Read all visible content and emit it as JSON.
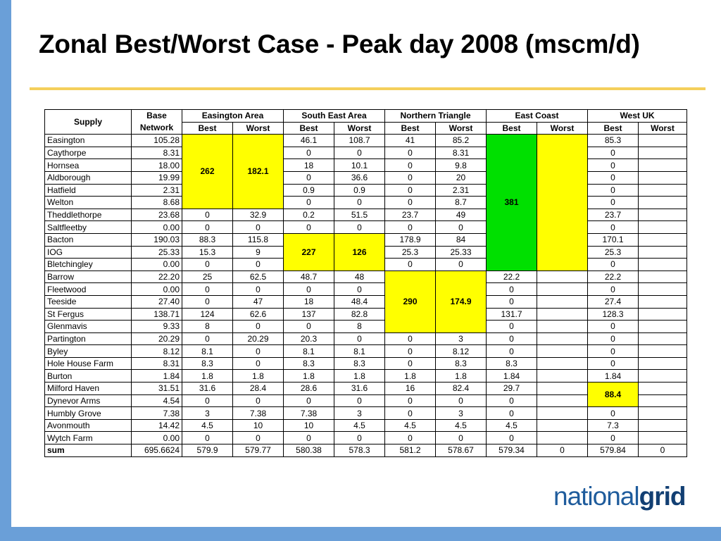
{
  "slide": {
    "title": "Zonal Best/Worst Case - Peak day 2008 (mscm/d)",
    "logo_light": "national",
    "logo_bold": "grid"
  },
  "colors": {
    "accent_bar": "#6a9fd8",
    "rule": "#f4cf5b",
    "highlight_yellow": "#ffff00",
    "highlight_green": "#00e000"
  },
  "table": {
    "headers": {
      "supply": "Supply",
      "base": "Base Network",
      "zones": [
        "Easington Area",
        "South East Area",
        "Northern Triangle",
        "East Coast",
        "West UK"
      ],
      "best": "Best",
      "worst": "Worst"
    },
    "rows": [
      {
        "name": "Easington",
        "base": "105.28",
        "v": [
          "",
          "",
          "46.1",
          "108.7",
          "41",
          "85.2",
          "",
          "",
          "85.3",
          ""
        ]
      },
      {
        "name": "Caythorpe",
        "base": "8.31",
        "v": [
          "",
          "",
          "0",
          "0",
          "0",
          "8.31",
          "",
          "",
          "0",
          ""
        ]
      },
      {
        "name": "Hornsea",
        "base": "18.00",
        "v": [
          "",
          "",
          "18",
          "10.1",
          "0",
          "9.8",
          "",
          "",
          "0",
          ""
        ]
      },
      {
        "name": "Aldborough",
        "base": "19.99",
        "v": [
          "",
          "",
          "0",
          "36.6",
          "0",
          "20",
          "",
          "",
          "0",
          ""
        ]
      },
      {
        "name": "Hatfield",
        "base": "2.31",
        "v": [
          "",
          "",
          "0.9",
          "0.9",
          "0",
          "2.31",
          "",
          "",
          "0",
          ""
        ]
      },
      {
        "name": "Welton",
        "base": "8.68",
        "v": [
          "",
          "",
          "0",
          "0",
          "0",
          "8.7",
          "",
          "",
          "0",
          ""
        ]
      },
      {
        "name": "Theddlethorpe",
        "base": "23.68",
        "v": [
          "0",
          "32.9",
          "0.2",
          "51.5",
          "23.7",
          "49",
          "",
          "",
          "23.7",
          ""
        ]
      },
      {
        "name": "Saltfleetby",
        "base": "0.00",
        "v": [
          "0",
          "0",
          "0",
          "0",
          "0",
          "0",
          "",
          "",
          "0",
          ""
        ]
      },
      {
        "name": "Bacton",
        "base": "190.03",
        "v": [
          "88.3",
          "115.8",
          "",
          "",
          "178.9",
          "84",
          "",
          "",
          "170.1",
          ""
        ]
      },
      {
        "name": "IOG",
        "base": "25.33",
        "v": [
          "15.3",
          "9",
          "",
          "",
          "25.3",
          "25.33",
          "",
          "",
          "25.3",
          ""
        ]
      },
      {
        "name": "Bletchingley",
        "base": "0.00",
        "v": [
          "0",
          "0",
          "",
          "",
          "0",
          "0",
          "",
          "",
          "0",
          ""
        ]
      },
      {
        "name": "Barrow",
        "base": "22.20",
        "v": [
          "25",
          "62.5",
          "48.7",
          "48",
          "",
          "",
          "22.2",
          "",
          "22.2",
          ""
        ]
      },
      {
        "name": "Fleetwood",
        "base": "0.00",
        "v": [
          "0",
          "0",
          "0",
          "0",
          "",
          "",
          "0",
          "",
          "0",
          ""
        ]
      },
      {
        "name": "Teeside",
        "base": "27.40",
        "v": [
          "0",
          "47",
          "18",
          "48.4",
          "",
          "",
          "0",
          "",
          "27.4",
          ""
        ]
      },
      {
        "name": "St Fergus",
        "base": "138.71",
        "v": [
          "124",
          "62.6",
          "137",
          "82.8",
          "",
          "",
          "131.7",
          "",
          "128.3",
          ""
        ]
      },
      {
        "name": "Glenmavis",
        "base": "9.33",
        "v": [
          "8",
          "0",
          "0",
          "8",
          "",
          "",
          "0",
          "",
          "0",
          ""
        ]
      },
      {
        "name": "Partington",
        "base": "20.29",
        "v": [
          "0",
          "20.29",
          "20.3",
          "0",
          "0",
          "3",
          "0",
          "",
          "0",
          ""
        ]
      },
      {
        "name": "Byley",
        "base": "8.12",
        "v": [
          "8.1",
          "0",
          "8.1",
          "8.1",
          "0",
          "8.12",
          "0",
          "",
          "0",
          ""
        ]
      },
      {
        "name": "Hole House Farm",
        "base": "8.31",
        "v": [
          "8.3",
          "0",
          "8.3",
          "8.3",
          "0",
          "8.3",
          "8.3",
          "",
          "0",
          ""
        ]
      },
      {
        "name": "Burton",
        "base": "1.84",
        "v": [
          "1.8",
          "1.8",
          "1.8",
          "1.8",
          "1.8",
          "1.8",
          "1.84",
          "",
          "1.84",
          ""
        ]
      },
      {
        "name": "Milford Haven",
        "base": "31.51",
        "v": [
          "31.6",
          "28.4",
          "28.6",
          "31.6",
          "16",
          "82.4",
          "29.7",
          "",
          "",
          ""
        ]
      },
      {
        "name": "Dynevor Arms",
        "base": "4.54",
        "v": [
          "0",
          "0",
          "0",
          "0",
          "0",
          "0",
          "0",
          "",
          "",
          ""
        ]
      },
      {
        "name": "Humbly Grove",
        "base": "7.38",
        "v": [
          "3",
          "7.38",
          "7.38",
          "3",
          "0",
          "3",
          "0",
          "",
          "0",
          ""
        ]
      },
      {
        "name": "Avonmouth",
        "base": "14.42",
        "v": [
          "4.5",
          "10",
          "10",
          "4.5",
          "4.5",
          "4.5",
          "4.5",
          "",
          "7.3",
          ""
        ]
      },
      {
        "name": "Wytch Farm",
        "base": "0.00",
        "v": [
          "0",
          "0",
          "0",
          "0",
          "0",
          "0",
          "0",
          "",
          "0",
          ""
        ]
      }
    ],
    "merged": {
      "easington_best": "262",
      "easington_worst": "182.1",
      "southeast_best": "227",
      "southeast_worst": "126",
      "northern_best": "290",
      "northern_worst": "174.9",
      "eastcoast_best": "381",
      "westuk_best": "88.4"
    },
    "sum": {
      "label": "sum",
      "base": "695.6624",
      "v": [
        "579.9",
        "579.77",
        "580.38",
        "578.3",
        "581.2",
        "578.67",
        "579.34",
        "0",
        "579.84",
        "0"
      ]
    }
  }
}
